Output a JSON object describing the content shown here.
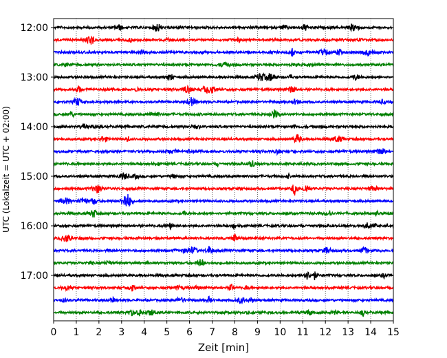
{
  "chart_data": {
    "type": "line",
    "title": "",
    "xlabel": "Zeit  [min]",
    "ylabel": "UTC (Lokalzeit = UTC + 02:00)",
    "xlim": [
      0,
      15
    ],
    "x_ticks": [
      "0",
      "1",
      "2",
      "3",
      "4",
      "5",
      "6",
      "7",
      "8",
      "9",
      "10",
      "11",
      "12",
      "13",
      "14",
      "15"
    ],
    "y_ticks": [
      "12:00",
      "13:00",
      "14:00",
      "15:00",
      "16:00",
      "17:00"
    ],
    "grid": "vertical dotted at every minute",
    "trace_interval_minutes": 15,
    "trace_start_times": [
      "12:00",
      "12:15",
      "12:30",
      "12:45",
      "13:00",
      "13:15",
      "13:30",
      "13:45",
      "14:00",
      "14:15",
      "14:30",
      "14:45",
      "15:00",
      "15:15",
      "15:30",
      "15:45",
      "16:00",
      "16:15",
      "16:30",
      "16:45",
      "17:00",
      "17:15",
      "17:30",
      "17:45"
    ],
    "trace_colors": [
      "#000000",
      "#ff0000",
      "#0000ff",
      "#008000"
    ]
  }
}
